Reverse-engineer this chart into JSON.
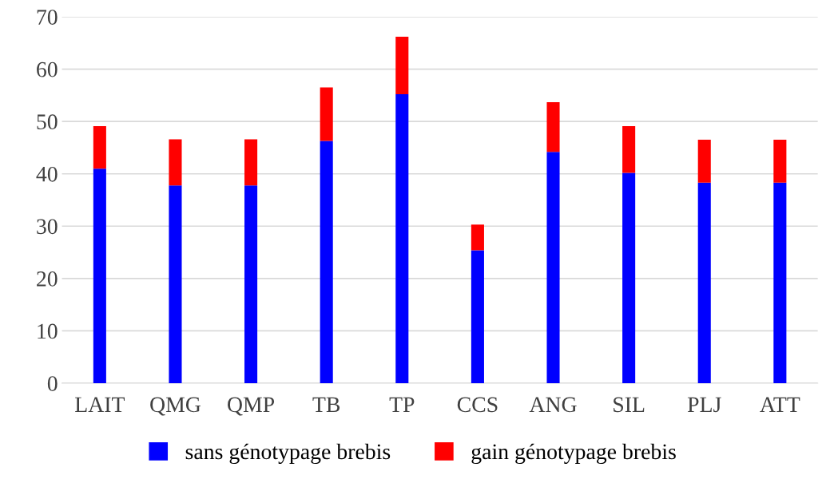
{
  "chart_data": {
    "type": "bar",
    "stacked": true,
    "categories": [
      "LAIT",
      "QMG",
      "QMP",
      "TB",
      "TP",
      "CCS",
      "ANG",
      "SIL",
      "PLJ",
      "ATT"
    ],
    "series": [
      {
        "name": "sans génotypage brebis",
        "color": "#0000ff",
        "values": [
          41,
          37.8,
          37.8,
          46.3,
          55.2,
          25.4,
          44.2,
          40.2,
          38.3,
          38.3
        ]
      },
      {
        "name": "gain génotypage brebis",
        "color": "#ff0000",
        "values": [
          8.1,
          8.8,
          8.8,
          10.2,
          11,
          4.9,
          9.5,
          8.9,
          8.2,
          8.2
        ]
      }
    ],
    "ylim": [
      0,
      70
    ],
    "yticks": [
      0,
      10,
      20,
      30,
      40,
      50,
      60,
      70
    ],
    "grid": "y",
    "legend": "bottom"
  }
}
